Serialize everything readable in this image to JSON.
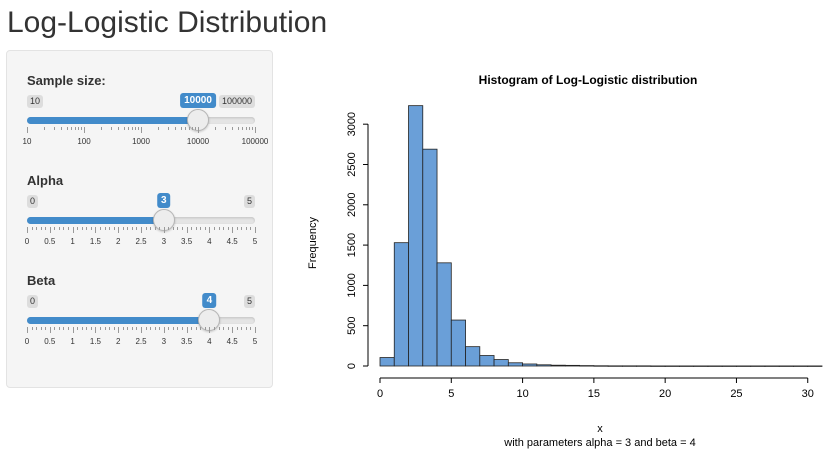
{
  "app": {
    "title": "Log-Logistic Distribution"
  },
  "sidebar": {
    "sample_size": {
      "label": "Sample size:",
      "min": "10",
      "max": "100000",
      "value": "10000",
      "fraction": 0.75,
      "ticks": [
        "10",
        "100",
        "1000",
        "10000",
        "100000"
      ]
    },
    "alpha": {
      "label": "Alpha",
      "min": "0",
      "max": "5",
      "value": "3",
      "fraction": 0.6,
      "ticks": [
        "0",
        "0.5",
        "1",
        "1.5",
        "2",
        "2.5",
        "3",
        "3.5",
        "4",
        "4.5",
        "5"
      ]
    },
    "beta": {
      "label": "Beta",
      "min": "0",
      "max": "5",
      "value": "4",
      "fraction": 0.8,
      "ticks": [
        "0",
        "0.5",
        "1",
        "1.5",
        "2",
        "2.5",
        "3",
        "3.5",
        "4",
        "4.5",
        "5"
      ]
    },
    "accent_color": "#428bca"
  },
  "chart_data": {
    "type": "bar",
    "title": "Histogram of Log-Logistic distribution",
    "xlabel": "x",
    "ylabel": "Frequency",
    "subtitle": "with parameters alpha =  3  and beta =  4",
    "bin_width": 1,
    "bin_starts": [
      0,
      1,
      2,
      3,
      4,
      5,
      6,
      7,
      8,
      9,
      10,
      11,
      12,
      13,
      14,
      15,
      16,
      17,
      18,
      19,
      20,
      21,
      22,
      23,
      24,
      25,
      26,
      27,
      28,
      29,
      30
    ],
    "values": [
      105,
      1530,
      3230,
      2690,
      1280,
      570,
      240,
      130,
      80,
      40,
      25,
      15,
      10,
      8,
      5,
      3,
      2,
      2,
      2,
      1,
      1,
      1,
      1,
      1,
      1,
      1,
      1,
      1,
      1,
      1,
      1
    ],
    "xlim": [
      0,
      31
    ],
    "ylim": [
      0,
      3300
    ],
    "xticks": [
      "0",
      "5",
      "10",
      "15",
      "20",
      "25",
      "30"
    ],
    "yticks": [
      "0",
      "500",
      "1000",
      "1500",
      "2000",
      "2500",
      "3000"
    ],
    "bar_color": "#6a9fd8",
    "grid": false
  }
}
